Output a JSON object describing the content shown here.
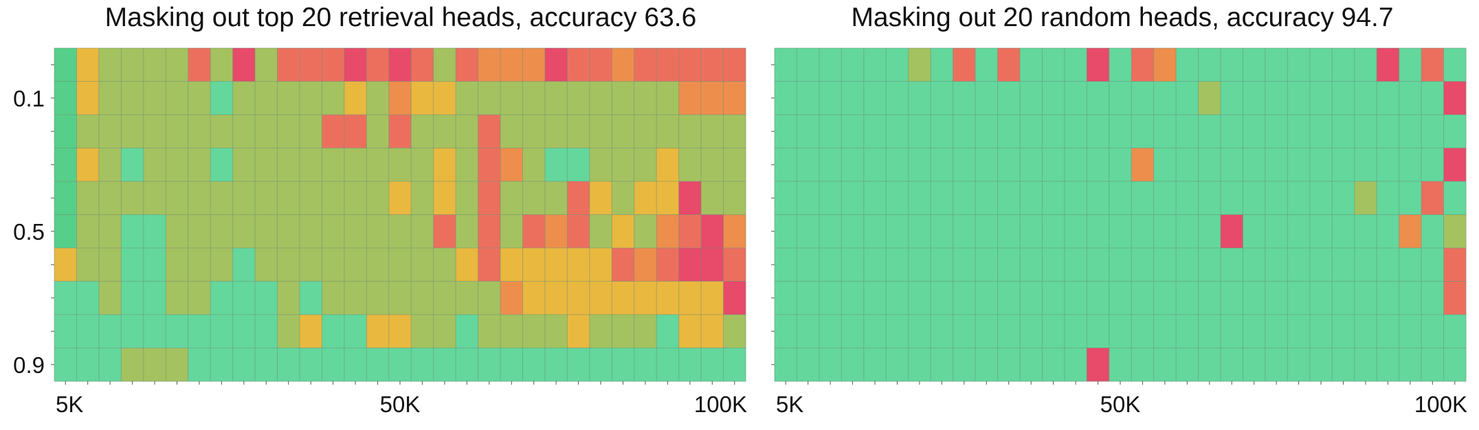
{
  "chart_data": [
    {
      "type": "heatmap",
      "title": "Masking out top 20 retrieval heads, accuracy 63.6",
      "x_tick_labels": [
        "5K",
        "50K",
        "100K"
      ],
      "y_tick_labels": [
        "0.1",
        "0.5",
        "0.9"
      ],
      "n_columns": 31,
      "n_rows": 10,
      "grid": true,
      "colorscale": {
        "0": "#e84a6a",
        "1": "#ec6f5d",
        "2": "#ed8e4c",
        "3": "#e9b83e",
        "4": "#a4c25f",
        "5": "#63d79c",
        "6": "#55cf89"
      },
      "values": [
        [
          6,
          3,
          4,
          4,
          4,
          4,
          1,
          4,
          0,
          4,
          1,
          1,
          1,
          0,
          1,
          0,
          1,
          4,
          1,
          2,
          2,
          2,
          0,
          1,
          1,
          2,
          1,
          1,
          1,
          1,
          1
        ],
        [
          6,
          3,
          4,
          4,
          4,
          4,
          4,
          5,
          4,
          4,
          4,
          4,
          4,
          3,
          4,
          2,
          3,
          3,
          4,
          4,
          4,
          4,
          4,
          4,
          4,
          4,
          4,
          4,
          2,
          2,
          2
        ],
        [
          6,
          4,
          4,
          4,
          4,
          4,
          4,
          4,
          4,
          4,
          4,
          4,
          1,
          1,
          4,
          1,
          4,
          4,
          4,
          1,
          4,
          4,
          4,
          4,
          4,
          4,
          4,
          4,
          4,
          4,
          4
        ],
        [
          6,
          3,
          4,
          5,
          4,
          4,
          4,
          5,
          4,
          4,
          4,
          4,
          4,
          4,
          4,
          4,
          4,
          3,
          4,
          1,
          2,
          4,
          5,
          5,
          4,
          4,
          4,
          3,
          4,
          4,
          4
        ],
        [
          6,
          4,
          4,
          4,
          4,
          4,
          4,
          4,
          4,
          4,
          4,
          4,
          4,
          4,
          4,
          3,
          4,
          3,
          4,
          1,
          4,
          4,
          4,
          1,
          3,
          4,
          3,
          3,
          0,
          4,
          4
        ],
        [
          6,
          4,
          4,
          5,
          5,
          4,
          4,
          4,
          4,
          4,
          4,
          4,
          4,
          4,
          4,
          4,
          4,
          1,
          4,
          1,
          4,
          1,
          2,
          1,
          4,
          3,
          4,
          2,
          1,
          0,
          2
        ],
        [
          3,
          4,
          4,
          5,
          5,
          4,
          4,
          4,
          5,
          4,
          4,
          4,
          4,
          4,
          4,
          4,
          4,
          4,
          3,
          1,
          3,
          3,
          3,
          3,
          3,
          1,
          2,
          1,
          0,
          0,
          1
        ],
        [
          5,
          5,
          4,
          5,
          5,
          4,
          4,
          5,
          5,
          5,
          4,
          5,
          4,
          4,
          4,
          4,
          4,
          4,
          4,
          4,
          2,
          3,
          3,
          3,
          3,
          3,
          3,
          3,
          3,
          3,
          0
        ],
        [
          5,
          5,
          5,
          5,
          5,
          5,
          5,
          5,
          5,
          5,
          4,
          3,
          5,
          5,
          3,
          3,
          4,
          4,
          5,
          4,
          4,
          4,
          4,
          3,
          4,
          4,
          4,
          5,
          3,
          3,
          4
        ],
        [
          5,
          5,
          5,
          4,
          4,
          4,
          5,
          5,
          5,
          5,
          5,
          5,
          5,
          5,
          5,
          5,
          5,
          5,
          5,
          5,
          5,
          5,
          5,
          5,
          5,
          5,
          5,
          5,
          5,
          5,
          5
        ]
      ]
    },
    {
      "type": "heatmap",
      "title": "Masking out 20 random heads, accuracy 94.7",
      "x_tick_labels": [
        "5K",
        "50K",
        "100K"
      ],
      "y_tick_labels": [
        "0.1",
        "0.5",
        "0.9"
      ],
      "n_columns": 31,
      "n_rows": 10,
      "grid": true,
      "colorscale": {
        "0": "#e84a6a",
        "1": "#ec6f5d",
        "2": "#ed8e4c",
        "3": "#e9b83e",
        "4": "#a4c25f",
        "5": "#63d79c",
        "6": "#55cf89"
      },
      "values": [
        [
          5,
          5,
          5,
          5,
          5,
          5,
          4,
          5,
          1,
          5,
          1,
          5,
          5,
          5,
          0,
          5,
          1,
          2,
          5,
          5,
          5,
          5,
          5,
          5,
          5,
          5,
          5,
          0,
          5,
          1,
          5
        ],
        [
          5,
          5,
          5,
          5,
          5,
          5,
          5,
          5,
          5,
          5,
          5,
          5,
          5,
          5,
          5,
          5,
          5,
          5,
          5,
          4,
          5,
          5,
          5,
          5,
          5,
          5,
          5,
          5,
          5,
          5,
          0
        ],
        [
          5,
          5,
          5,
          5,
          5,
          5,
          5,
          5,
          5,
          5,
          5,
          5,
          5,
          5,
          5,
          5,
          5,
          5,
          5,
          5,
          5,
          5,
          5,
          5,
          5,
          5,
          5,
          5,
          5,
          5,
          5
        ],
        [
          5,
          5,
          5,
          5,
          5,
          5,
          5,
          5,
          5,
          5,
          5,
          5,
          5,
          5,
          5,
          5,
          2,
          5,
          5,
          5,
          5,
          5,
          5,
          5,
          5,
          5,
          5,
          5,
          5,
          5,
          0
        ],
        [
          5,
          5,
          5,
          5,
          5,
          5,
          5,
          5,
          5,
          5,
          5,
          5,
          5,
          5,
          5,
          5,
          5,
          5,
          5,
          5,
          5,
          5,
          5,
          5,
          5,
          5,
          4,
          5,
          5,
          1,
          5
        ],
        [
          5,
          5,
          5,
          5,
          5,
          5,
          5,
          5,
          5,
          5,
          5,
          5,
          5,
          5,
          5,
          5,
          5,
          5,
          5,
          5,
          0,
          5,
          5,
          5,
          5,
          5,
          5,
          5,
          2,
          5,
          4
        ],
        [
          5,
          5,
          5,
          5,
          5,
          5,
          5,
          5,
          5,
          5,
          5,
          5,
          5,
          5,
          5,
          5,
          5,
          5,
          5,
          5,
          5,
          5,
          5,
          5,
          5,
          5,
          5,
          5,
          5,
          5,
          1
        ],
        [
          5,
          5,
          5,
          5,
          5,
          5,
          5,
          5,
          5,
          5,
          5,
          5,
          5,
          5,
          5,
          5,
          5,
          5,
          5,
          5,
          5,
          5,
          5,
          5,
          5,
          5,
          5,
          5,
          5,
          5,
          1
        ],
        [
          5,
          5,
          5,
          5,
          5,
          5,
          5,
          5,
          5,
          5,
          5,
          5,
          5,
          5,
          5,
          5,
          5,
          5,
          5,
          5,
          5,
          5,
          5,
          5,
          5,
          5,
          5,
          5,
          5,
          5,
          5
        ],
        [
          5,
          5,
          5,
          5,
          5,
          5,
          5,
          5,
          5,
          5,
          5,
          5,
          5,
          5,
          0,
          5,
          5,
          5,
          5,
          5,
          5,
          5,
          5,
          5,
          5,
          5,
          5,
          5,
          5,
          5,
          5
        ]
      ]
    }
  ]
}
